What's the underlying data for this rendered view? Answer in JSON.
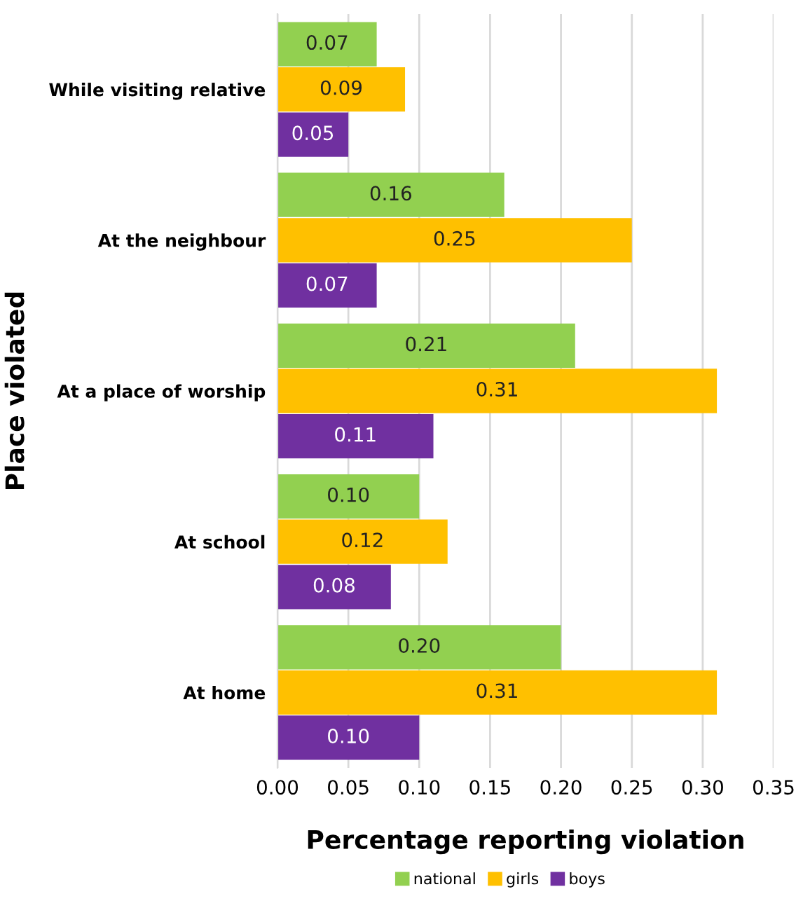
{
  "chart_data": {
    "type": "bar",
    "orientation": "horizontal",
    "xlabel": "Percentage reporting violation",
    "ylabel": "Place violated",
    "categories": [
      "While visiting relative",
      "At the neighbour",
      "At a place of worship",
      "At school",
      "At home"
    ],
    "series": [
      {
        "name": "national",
        "color": "#92d050",
        "values": [
          0.07,
          0.16,
          0.21,
          0.1,
          0.2
        ],
        "value_labels": [
          "0.07",
          "0.16",
          "0.21",
          "0.10",
          "0.20"
        ]
      },
      {
        "name": "girls",
        "color": "#ffc000",
        "values": [
          0.09,
          0.25,
          0.31,
          0.12,
          0.31
        ],
        "value_labels": [
          "0.09",
          "0.25",
          "0.31",
          "0.12",
          "0.31"
        ]
      },
      {
        "name": "boys",
        "color": "#7030a0",
        "values": [
          0.05,
          0.07,
          0.11,
          0.08,
          0.1
        ],
        "value_labels": [
          "0.05",
          "0.07",
          "0.11",
          "0.08",
          "0.10"
        ]
      }
    ],
    "xlim": [
      0,
      0.35
    ],
    "xticks": [
      {
        "value": 0,
        "label": "0.00"
      },
      {
        "value": 0.05,
        "label": "0.05"
      },
      {
        "value": 0.1,
        "label": "0.10"
      },
      {
        "value": 0.15,
        "label": "0.15"
      },
      {
        "value": 0.2,
        "label": "0.20"
      },
      {
        "value": 0.25,
        "label": "0.25"
      },
      {
        "value": 0.3,
        "label": "0.30"
      },
      {
        "value": 0.35,
        "label": "0.35"
      }
    ],
    "grid": "x",
    "legend": "bottom"
  }
}
